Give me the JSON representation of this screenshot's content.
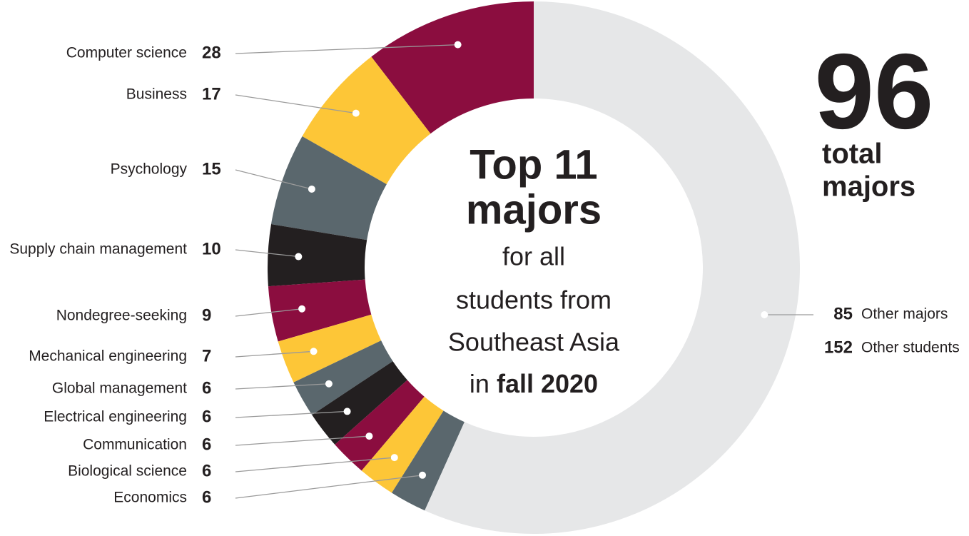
{
  "chart_data": {
    "type": "pie",
    "donut": true,
    "center_text": [
      "Top 11",
      "majors",
      "for all",
      "students from",
      "Southeast Asia"
    ],
    "center_last_line": [
      "in ",
      "fall 2020"
    ],
    "categories": [
      "Computer science",
      "Business",
      "Psychology",
      "Supply chain management",
      "Nondegree-seeking",
      "Mechanical engineering",
      "Global management",
      "Electrical engineering",
      "Communication",
      "Biological science",
      "Economics"
    ],
    "values": [
      28,
      17,
      15,
      10,
      9,
      7,
      6,
      6,
      6,
      6,
      6
    ],
    "colors": [
      "#8b0d3f",
      "#fdc637",
      "#5a676d",
      "#231f20",
      "#8b0d3f",
      "#fdc637",
      "#5a676d",
      "#231f20",
      "#8b0d3f",
      "#fdc637",
      "#5a676d"
    ],
    "other": {
      "majors_value": 85,
      "majors_label": "Other majors",
      "students_value": 152,
      "students_label": "Other students",
      "color": "#e6e7e8"
    },
    "total_majors": {
      "value": 96,
      "label_lines": [
        "total",
        "majors"
      ],
      "color": "#8b0d3f"
    }
  }
}
